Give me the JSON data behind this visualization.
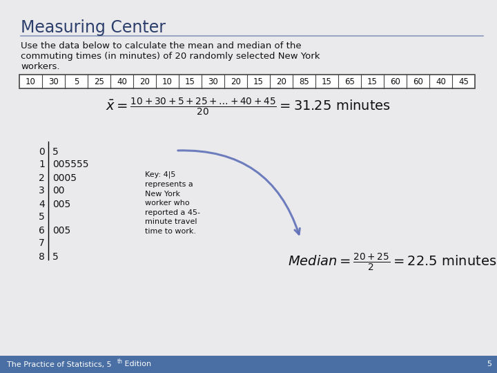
{
  "title": "Measuring Center",
  "description_line1": "Use the data below to calculate the mean and median of the",
  "description_line2": "commuting times (in minutes) of 20 randomly selected New York",
  "description_line3": "workers.",
  "data_values": [
    "10",
    "30",
    "5",
    "25",
    "40",
    "20",
    "10",
    "15",
    "30",
    "20",
    "15",
    "20",
    "85",
    "15",
    "65",
    "15",
    "60",
    "60",
    "40",
    "45"
  ],
  "stem_leaf": [
    [
      "0",
      "5"
    ],
    [
      "1",
      "005555"
    ],
    [
      "2",
      "0005"
    ],
    [
      "3",
      "00"
    ],
    [
      "4",
      "005"
    ],
    [
      "5",
      ""
    ],
    [
      "6",
      "005"
    ],
    [
      "7",
      ""
    ],
    [
      "8",
      "5"
    ]
  ],
  "key_text": "Key: 4|5\nrepresents a\nNew York\nworker who\nreported a 45-\nminute travel\ntime to work.",
  "page_number": "5",
  "bg_color": "#eaeaed",
  "title_color": "#2c3e6b",
  "footer_bg": "#4a6fa5",
  "footer_text_color": "#ffffff",
  "table_border_color": "#444444",
  "text_color": "#111111",
  "arrow_color": "#6070b8"
}
